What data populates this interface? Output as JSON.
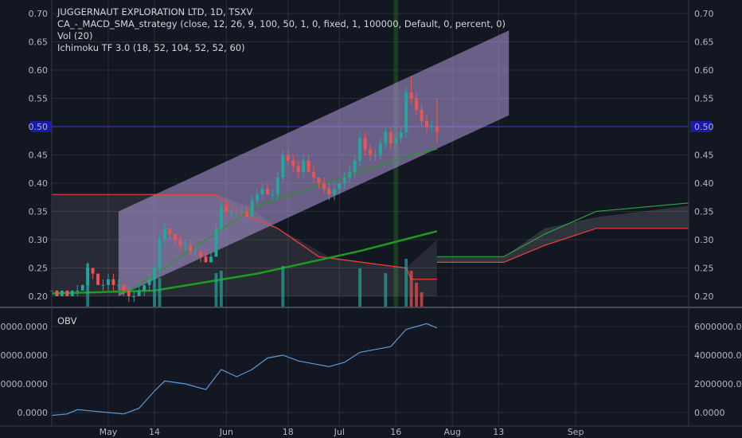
{
  "header": {
    "symbol_line": "JUGGERNAUT EXPLORATION LTD, 1D, TSXV",
    "indicators": [
      "CA_-_MACD_SMA_strategy (close, 12, 26, 9, 100, 50, 1, 0, fixed, 1, 100000, Default, 0, percent, 0)",
      "Vol (20)",
      "Ichimoku TF 3.0 (18, 52, 104, 52, 52, 60)"
    ]
  },
  "price_axis": {
    "ticks": [
      "0.70",
      "0.65",
      "0.60",
      "0.55",
      "0.50",
      "0.45",
      "0.40",
      "0.35",
      "0.30",
      "0.25",
      "0.20"
    ],
    "highlight_label": "0.50"
  },
  "obv_panel": {
    "label": "OBV",
    "ticks": [
      "6000000.0000",
      "4000000.0000",
      "2000000.0000",
      "0.0000"
    ]
  },
  "time_axis": {
    "labels": [
      "May",
      "14",
      "Jun",
      "18",
      "Jul",
      "16",
      "Aug",
      "13",
      "Sep"
    ]
  },
  "colors": {
    "background": "#131722",
    "grid": "#2a2e39",
    "up": "#26a69a",
    "down": "#ef5350",
    "channel": "#b39ddb",
    "ma_green": "#1b9e1b",
    "kijun": "#ff3b3b",
    "span_green": "#2ea043",
    "obv_line": "#5b9bd5",
    "highlight_line": "#3f3fcf"
  },
  "chart_data": [
    {
      "type": "candlestick",
      "title": "JUGGERNAUT EXPLORATION LTD, 1D, TSXV",
      "ylim": [
        0.18,
        0.71
      ],
      "x_start_index": 0,
      "x_end_index": 124,
      "month_marks": [
        {
          "label": "May",
          "index": 11
        },
        {
          "label": "14",
          "index": 20
        },
        {
          "label": "Jun",
          "index": 34
        },
        {
          "label": "18",
          "index": 46
        },
        {
          "label": "Jul",
          "index": 56
        },
        {
          "label": "16",
          "index": 67
        },
        {
          "label": "Aug",
          "index": 78
        },
        {
          "label": "13",
          "index": 87
        },
        {
          "label": "Sep",
          "index": 102
        }
      ],
      "candles": [
        [
          0,
          0.21,
          0.21,
          0.2,
          0.21
        ],
        [
          1,
          0.21,
          0.21,
          0.2,
          0.2
        ],
        [
          2,
          0.2,
          0.21,
          0.2,
          0.21
        ],
        [
          3,
          0.21,
          0.21,
          0.2,
          0.2
        ],
        [
          4,
          0.2,
          0.21,
          0.2,
          0.21
        ],
        [
          5,
          0.21,
          0.22,
          0.2,
          0.21
        ],
        [
          6,
          0.21,
          0.22,
          0.21,
          0.22
        ],
        [
          7,
          0.22,
          0.26,
          0.21,
          0.25
        ],
        [
          8,
          0.25,
          0.25,
          0.23,
          0.24
        ],
        [
          9,
          0.24,
          0.24,
          0.22,
          0.22
        ],
        [
          10,
          0.22,
          0.23,
          0.21,
          0.22
        ],
        [
          11,
          0.22,
          0.24,
          0.21,
          0.23
        ],
        [
          12,
          0.23,
          0.24,
          0.21,
          0.22
        ],
        [
          13,
          0.22,
          0.23,
          0.21,
          0.22
        ],
        [
          14,
          0.22,
          0.22,
          0.2,
          0.21
        ],
        [
          15,
          0.21,
          0.22,
          0.19,
          0.2
        ],
        [
          16,
          0.2,
          0.21,
          0.19,
          0.2
        ],
        [
          17,
          0.2,
          0.22,
          0.2,
          0.21
        ],
        [
          18,
          0.21,
          0.22,
          0.2,
          0.22
        ],
        [
          19,
          0.22,
          0.24,
          0.21,
          0.23
        ],
        [
          20,
          0.23,
          0.26,
          0.22,
          0.25
        ],
        [
          21,
          0.25,
          0.31,
          0.24,
          0.3
        ],
        [
          22,
          0.3,
          0.33,
          0.29,
          0.32
        ],
        [
          23,
          0.32,
          0.32,
          0.3,
          0.31
        ],
        [
          24,
          0.31,
          0.31,
          0.29,
          0.3
        ],
        [
          25,
          0.3,
          0.31,
          0.28,
          0.29
        ],
        [
          26,
          0.29,
          0.3,
          0.28,
          0.29
        ],
        [
          27,
          0.29,
          0.3,
          0.27,
          0.28
        ],
        [
          28,
          0.28,
          0.29,
          0.27,
          0.28
        ],
        [
          29,
          0.28,
          0.28,
          0.26,
          0.27
        ],
        [
          30,
          0.27,
          0.28,
          0.26,
          0.26
        ],
        [
          31,
          0.26,
          0.28,
          0.26,
          0.27
        ],
        [
          32,
          0.27,
          0.33,
          0.27,
          0.32
        ],
        [
          33,
          0.32,
          0.37,
          0.31,
          0.36
        ],
        [
          34,
          0.36,
          0.37,
          0.34,
          0.35
        ],
        [
          35,
          0.35,
          0.36,
          0.34,
          0.35
        ],
        [
          36,
          0.35,
          0.36,
          0.34,
          0.35
        ],
        [
          37,
          0.35,
          0.36,
          0.34,
          0.35
        ],
        [
          38,
          0.35,
          0.36,
          0.34,
          0.34
        ],
        [
          39,
          0.34,
          0.38,
          0.34,
          0.37
        ],
        [
          40,
          0.37,
          0.39,
          0.36,
          0.38
        ],
        [
          41,
          0.38,
          0.4,
          0.37,
          0.39
        ],
        [
          42,
          0.39,
          0.4,
          0.38,
          0.38
        ],
        [
          43,
          0.38,
          0.39,
          0.37,
          0.38
        ],
        [
          44,
          0.38,
          0.42,
          0.37,
          0.41
        ],
        [
          45,
          0.41,
          0.46,
          0.4,
          0.45
        ],
        [
          46,
          0.45,
          0.46,
          0.43,
          0.44
        ],
        [
          47,
          0.44,
          0.45,
          0.42,
          0.43
        ],
        [
          48,
          0.43,
          0.44,
          0.41,
          0.42
        ],
        [
          49,
          0.42,
          0.45,
          0.41,
          0.44
        ],
        [
          50,
          0.44,
          0.45,
          0.42,
          0.42
        ],
        [
          51,
          0.42,
          0.43,
          0.4,
          0.41
        ],
        [
          52,
          0.41,
          0.41,
          0.39,
          0.4
        ],
        [
          53,
          0.4,
          0.41,
          0.38,
          0.39
        ],
        [
          54,
          0.39,
          0.4,
          0.37,
          0.38
        ],
        [
          55,
          0.38,
          0.4,
          0.37,
          0.39
        ],
        [
          56,
          0.39,
          0.4,
          0.38,
          0.4
        ],
        [
          57,
          0.4,
          0.42,
          0.39,
          0.41
        ],
        [
          58,
          0.41,
          0.43,
          0.4,
          0.42
        ],
        [
          59,
          0.42,
          0.45,
          0.41,
          0.44
        ],
        [
          60,
          0.44,
          0.49,
          0.43,
          0.48
        ],
        [
          61,
          0.48,
          0.49,
          0.45,
          0.46
        ],
        [
          62,
          0.46,
          0.47,
          0.44,
          0.45
        ],
        [
          63,
          0.45,
          0.46,
          0.44,
          0.45
        ],
        [
          64,
          0.45,
          0.48,
          0.44,
          0.47
        ],
        [
          65,
          0.47,
          0.5,
          0.46,
          0.49
        ],
        [
          66,
          0.49,
          0.5,
          0.46,
          0.47
        ],
        [
          67,
          0.47,
          0.49,
          0.46,
          0.48
        ],
        [
          68,
          0.48,
          0.5,
          0.47,
          0.49
        ],
        [
          69,
          0.49,
          0.57,
          0.48,
          0.56
        ],
        [
          70,
          0.56,
          0.59,
          0.54,
          0.55
        ],
        [
          71,
          0.55,
          0.56,
          0.52,
          0.53
        ],
        [
          72,
          0.53,
          0.54,
          0.5,
          0.51
        ],
        [
          73,
          0.51,
          0.52,
          0.49,
          0.5
        ],
        [
          74,
          0.5,
          0.51,
          0.49,
          0.5
        ],
        [
          75,
          0.5,
          0.55,
          0.47,
          0.49
        ]
      ],
      "volume_series": [
        {
          "index": 7,
          "value": 0.9,
          "dir": "up"
        },
        {
          "index": 20,
          "value": 0.8,
          "dir": "up"
        },
        {
          "index": 21,
          "value": 0.6,
          "dir": "up"
        },
        {
          "index": 32,
          "value": 0.7,
          "dir": "up"
        },
        {
          "index": 33,
          "value": 0.75,
          "dir": "up"
        },
        {
          "index": 45,
          "value": 0.85,
          "dir": "up"
        },
        {
          "index": 60,
          "value": 0.8,
          "dir": "up"
        },
        {
          "index": 65,
          "value": 0.7,
          "dir": "up"
        },
        {
          "index": 69,
          "value": 1.0,
          "dir": "up"
        },
        {
          "index": 70,
          "value": 0.75,
          "dir": "down"
        },
        {
          "index": 71,
          "value": 0.5,
          "dir": "down"
        },
        {
          "index": 72,
          "value": 0.3,
          "dir": "down"
        }
      ],
      "obv_series": [
        [
          0,
          -0.2
        ],
        [
          3,
          -0.1
        ],
        [
          5,
          0.2
        ],
        [
          8,
          0.1
        ],
        [
          11,
          0.0
        ],
        [
          14,
          -0.1
        ],
        [
          17,
          0.3
        ],
        [
          20,
          1.5
        ],
        [
          22,
          2.2
        ],
        [
          26,
          2.0
        ],
        [
          30,
          1.6
        ],
        [
          33,
          3.0
        ],
        [
          36,
          2.5
        ],
        [
          39,
          3.0
        ],
        [
          42,
          3.8
        ],
        [
          45,
          4.0
        ],
        [
          48,
          3.6
        ],
        [
          51,
          3.4
        ],
        [
          54,
          3.2
        ],
        [
          57,
          3.5
        ],
        [
          60,
          4.2
        ],
        [
          63,
          4.4
        ],
        [
          66,
          4.6
        ],
        [
          69,
          5.8
        ],
        [
          71,
          6.0
        ],
        [
          73,
          6.2
        ],
        [
          75,
          5.9
        ]
      ]
    }
  ]
}
